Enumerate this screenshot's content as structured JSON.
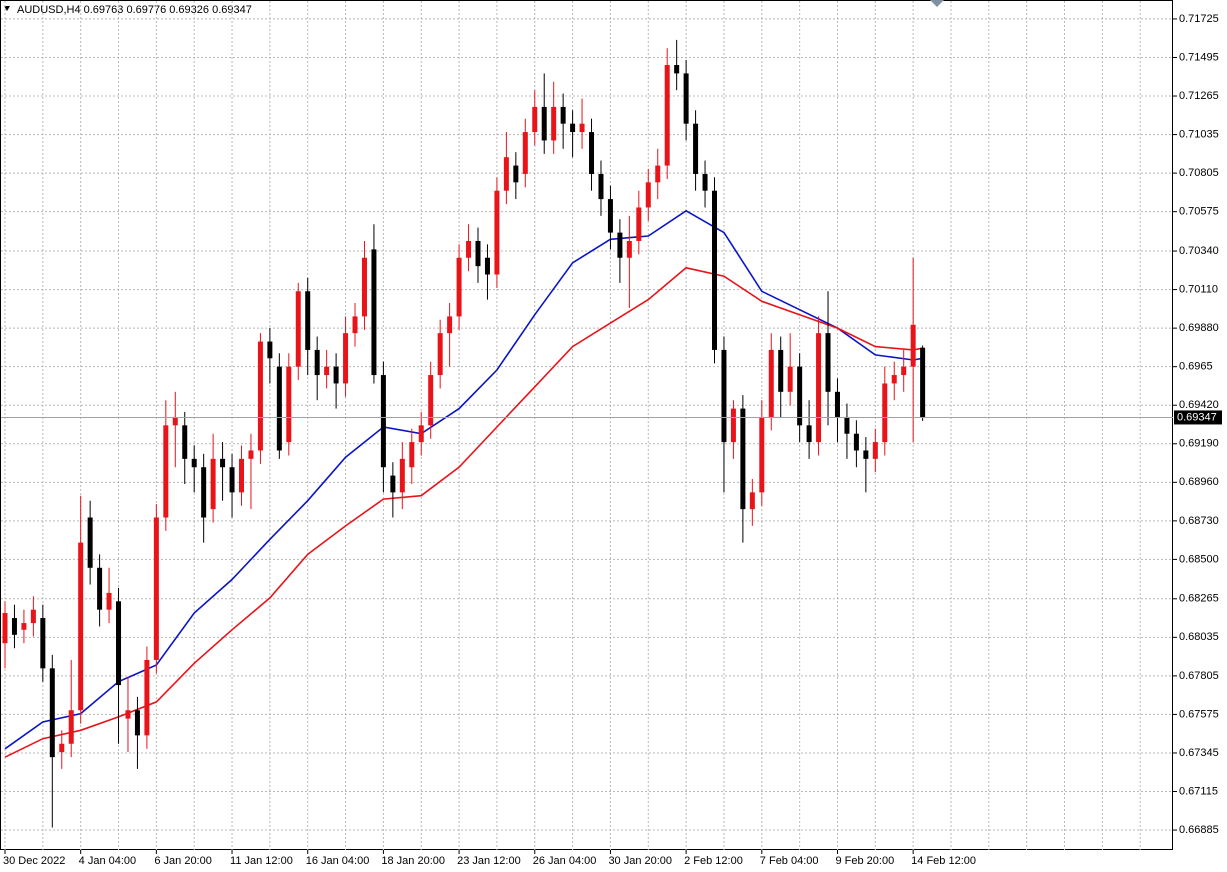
{
  "chart_data": {
    "type": "candlestick",
    "title": "AUDUSD,H4  0.69763 0.69776 0.69326 0.69347",
    "categories": [
      "30 Dec 2022",
      null,
      null,
      null,
      null,
      null,
      null,
      null,
      "4 Jan 04:00",
      null,
      null,
      null,
      null,
      null,
      null,
      null,
      "6 Jan 20:00",
      null,
      null,
      null,
      null,
      null,
      null,
      null,
      "11 Jan 12:00",
      null,
      null,
      null,
      null,
      null,
      null,
      null,
      "16 Jan 04:00",
      null,
      null,
      null,
      null,
      null,
      null,
      null,
      "18 Jan 20:00",
      null,
      null,
      null,
      null,
      null,
      null,
      null,
      "23 Jan 12:00",
      null,
      null,
      null,
      null,
      null,
      null,
      null,
      "26 Jan 04:00",
      null,
      null,
      null,
      null,
      null,
      null,
      null,
      "30 Jan 20:00",
      null,
      null,
      null,
      null,
      null,
      null,
      null,
      "2 Feb 12:00",
      null,
      null,
      null,
      null,
      null,
      null,
      null,
      "7 Feb 04:00",
      null,
      null,
      null,
      null,
      null,
      null,
      null,
      "9 Feb 20:00",
      null,
      null,
      null,
      null,
      null,
      null,
      null,
      "14 Feb 12:00",
      null
    ],
    "open": [
      0.68,
      0.6815,
      0.6808,
      0.6812,
      0.6815,
      0.6785,
      0.6735,
      0.674,
      0.676,
      0.6875,
      0.6845,
      0.682,
      0.6825,
      0.6755,
      0.676,
      0.6745,
      0.679,
      0.6875,
      0.693,
      0.693,
      0.691,
      0.6905,
      0.688,
      0.691,
      0.6905,
      0.689,
      0.691,
      0.6915,
      0.698,
      0.6965,
      0.692,
      0.6965,
      0.701,
      0.6975,
      0.696,
      0.6965,
      0.6955,
      0.6985,
      0.6995,
      0.7035,
      0.696,
      0.69,
      0.689,
      0.6905,
      0.692,
      0.693,
      0.696,
      0.6985,
      0.6995,
      0.703,
      0.704,
      0.703,
      0.702,
      0.707,
      0.7085,
      0.708,
      0.7105,
      0.712,
      0.71,
      0.712,
      0.711,
      0.7105,
      0.7105,
      0.708,
      0.7065,
      0.7045,
      0.703,
      0.704,
      0.706,
      0.7075,
      0.7085,
      0.7145,
      0.714,
      0.711,
      0.708,
      0.707,
      0.6975,
      0.692,
      0.694,
      0.688,
      0.689,
      0.6935,
      0.6975,
      0.695,
      0.6965,
      0.693,
      0.692,
      0.6985,
      0.695,
      0.6935,
      0.6925,
      0.6915,
      0.691,
      0.692,
      0.6955,
      0.696,
      0.6965,
      0.69763
    ],
    "high": [
      0.6825,
      0.6823,
      0.682,
      0.6828,
      0.6823,
      0.6793,
      0.6748,
      0.679,
      0.6888,
      0.6885,
      0.6853,
      0.6845,
      0.6833,
      0.678,
      0.6768,
      0.6798,
      0.6883,
      0.6945,
      0.695,
      0.6938,
      0.6918,
      0.6913,
      0.6925,
      0.692,
      0.6913,
      0.6918,
      0.6925,
      0.6985,
      0.6988,
      0.6973,
      0.6973,
      0.7015,
      0.7018,
      0.6983,
      0.6975,
      0.6973,
      0.6995,
      0.7003,
      0.704,
      0.705,
      0.6968,
      0.6908,
      0.692,
      0.6928,
      0.6938,
      0.6968,
      0.6993,
      0.7003,
      0.7038,
      0.705,
      0.7048,
      0.7038,
      0.7078,
      0.7105,
      0.7093,
      0.7113,
      0.713,
      0.714,
      0.7135,
      0.7128,
      0.7118,
      0.7125,
      0.7113,
      0.7088,
      0.7073,
      0.7053,
      0.7055,
      0.707,
      0.7083,
      0.7095,
      0.7155,
      0.716,
      0.7148,
      0.7118,
      0.7088,
      0.7078,
      0.6983,
      0.6945,
      0.6948,
      0.6898,
      0.6945,
      0.6985,
      0.6983,
      0.6985,
      0.6973,
      0.6945,
      0.6995,
      0.701,
      0.6958,
      0.6943,
      0.6933,
      0.6923,
      0.6928,
      0.6965,
      0.6968,
      0.6975,
      0.703,
      0.69776
    ],
    "low": [
      0.6785,
      0.6797,
      0.68,
      0.6804,
      0.6777,
      0.669,
      0.6725,
      0.6732,
      0.6752,
      0.6835,
      0.681,
      0.6812,
      0.674,
      0.6735,
      0.6725,
      0.6737,
      0.6782,
      0.6867,
      0.6905,
      0.6895,
      0.689,
      0.686,
      0.6872,
      0.6885,
      0.6875,
      0.6882,
      0.688,
      0.6907,
      0.6955,
      0.691,
      0.6912,
      0.6957,
      0.696,
      0.6945,
      0.6952,
      0.694,
      0.6947,
      0.6977,
      0.6987,
      0.6955,
      0.689,
      0.6875,
      0.688,
      0.6895,
      0.6912,
      0.6922,
      0.6952,
      0.6965,
      0.6987,
      0.7022,
      0.7015,
      0.7005,
      0.7012,
      0.7062,
      0.7065,
      0.7072,
      0.7097,
      0.7092,
      0.7092,
      0.7095,
      0.709,
      0.7095,
      0.707,
      0.7055,
      0.7035,
      0.7015,
      0.7,
      0.7032,
      0.7052,
      0.7065,
      0.7077,
      0.713,
      0.71,
      0.707,
      0.706,
      0.6967,
      0.689,
      0.691,
      0.686,
      0.687,
      0.6882,
      0.6927,
      0.6935,
      0.6942,
      0.692,
      0.691,
      0.6912,
      0.693,
      0.692,
      0.691,
      0.6905,
      0.689,
      0.6902,
      0.6912,
      0.6945,
      0.695,
      0.692,
      0.69326
    ],
    "close": [
      0.6818,
      0.6805,
      0.6812,
      0.682,
      0.6785,
      0.6732,
      0.674,
      0.676,
      0.686,
      0.6845,
      0.682,
      0.683,
      0.6775,
      0.676,
      0.6745,
      0.679,
      0.6875,
      0.693,
      0.6935,
      0.691,
      0.6905,
      0.6875,
      0.691,
      0.6905,
      0.689,
      0.691,
      0.6915,
      0.698,
      0.697,
      0.6915,
      0.6965,
      0.701,
      0.6975,
      0.696,
      0.6965,
      0.6955,
      0.6985,
      0.6995,
      0.703,
      0.696,
      0.6905,
      0.689,
      0.691,
      0.692,
      0.693,
      0.696,
      0.6985,
      0.6995,
      0.703,
      0.704,
      0.7025,
      0.702,
      0.707,
      0.709,
      0.7075,
      0.7105,
      0.712,
      0.71,
      0.712,
      0.711,
      0.7105,
      0.711,
      0.708,
      0.7065,
      0.7045,
      0.703,
      0.704,
      0.706,
      0.7075,
      0.7085,
      0.7145,
      0.714,
      0.711,
      0.708,
      0.707,
      0.6975,
      0.692,
      0.694,
      0.688,
      0.689,
      0.6935,
      0.6975,
      0.695,
      0.6965,
      0.693,
      0.692,
      0.6985,
      0.695,
      0.6935,
      0.6925,
      0.6915,
      0.691,
      0.692,
      0.6955,
      0.696,
      0.6965,
      0.699,
      0.69347
    ],
    "up_color": "#e8141a",
    "down_color": "#000000",
    "ma": [
      {
        "color": "#0a14c8",
        "x": [
          0,
          4,
          8,
          12,
          16,
          20,
          24,
          28,
          32,
          36,
          40,
          44,
          48,
          52,
          56,
          60,
          64,
          68,
          72,
          76,
          80,
          84,
          88,
          92,
          96,
          97
        ],
        "values": [
          0.6737,
          0.6753,
          0.6758,
          0.6777,
          0.6787,
          0.6818,
          0.6838,
          0.6862,
          0.6885,
          0.6911,
          0.6929,
          0.6925,
          0.694,
          0.6963,
          0.6996,
          0.7027,
          0.7041,
          0.7043,
          0.7058,
          0.7045,
          0.701,
          0.6999,
          0.6988,
          0.6972,
          0.6969,
          0.697
        ]
      },
      {
        "color": "#e8141a",
        "x": [
          0,
          4,
          8,
          12,
          16,
          20,
          24,
          28,
          32,
          36,
          40,
          44,
          48,
          52,
          56,
          60,
          64,
          68,
          72,
          76,
          80,
          84,
          88,
          92,
          96,
          97
        ],
        "values": [
          0.6732,
          0.6743,
          0.6748,
          0.6756,
          0.6765,
          0.6788,
          0.6808,
          0.6827,
          0.6853,
          0.687,
          0.6886,
          0.6888,
          0.6905,
          0.6929,
          0.6953,
          0.6977,
          0.6991,
          0.7005,
          0.7024,
          0.7019,
          0.7004,
          0.6996,
          0.6988,
          0.6977,
          0.6975,
          0.6976
        ]
      }
    ],
    "last_price": 0.69347,
    "ylim": [
      0.66766,
      0.71838
    ],
    "yticks": [
      0.71725,
      0.71495,
      0.71265,
      0.71035,
      0.70805,
      0.70575,
      {
        "value": 0.7034,
        "label": "0.70340"
      },
      {
        "value": 0.7011,
        "label": "0.70110"
      },
      {
        "value": 0.6988,
        "label": "0.69880"
      },
      0.6965,
      {
        "value": 0.6942,
        "label": "0.69420"
      },
      {
        "value": 0.6919,
        "label": "0.69190"
      },
      {
        "value": 0.6896,
        "label": "0.68960"
      },
      {
        "value": 0.6873,
        "label": "0.68730"
      },
      {
        "value": 0.685,
        "label": "0.68500"
      },
      0.68265,
      0.68035,
      0.67805,
      0.67575,
      0.67345,
      0.67115,
      0.66885
    ],
    "grid": true
  }
}
